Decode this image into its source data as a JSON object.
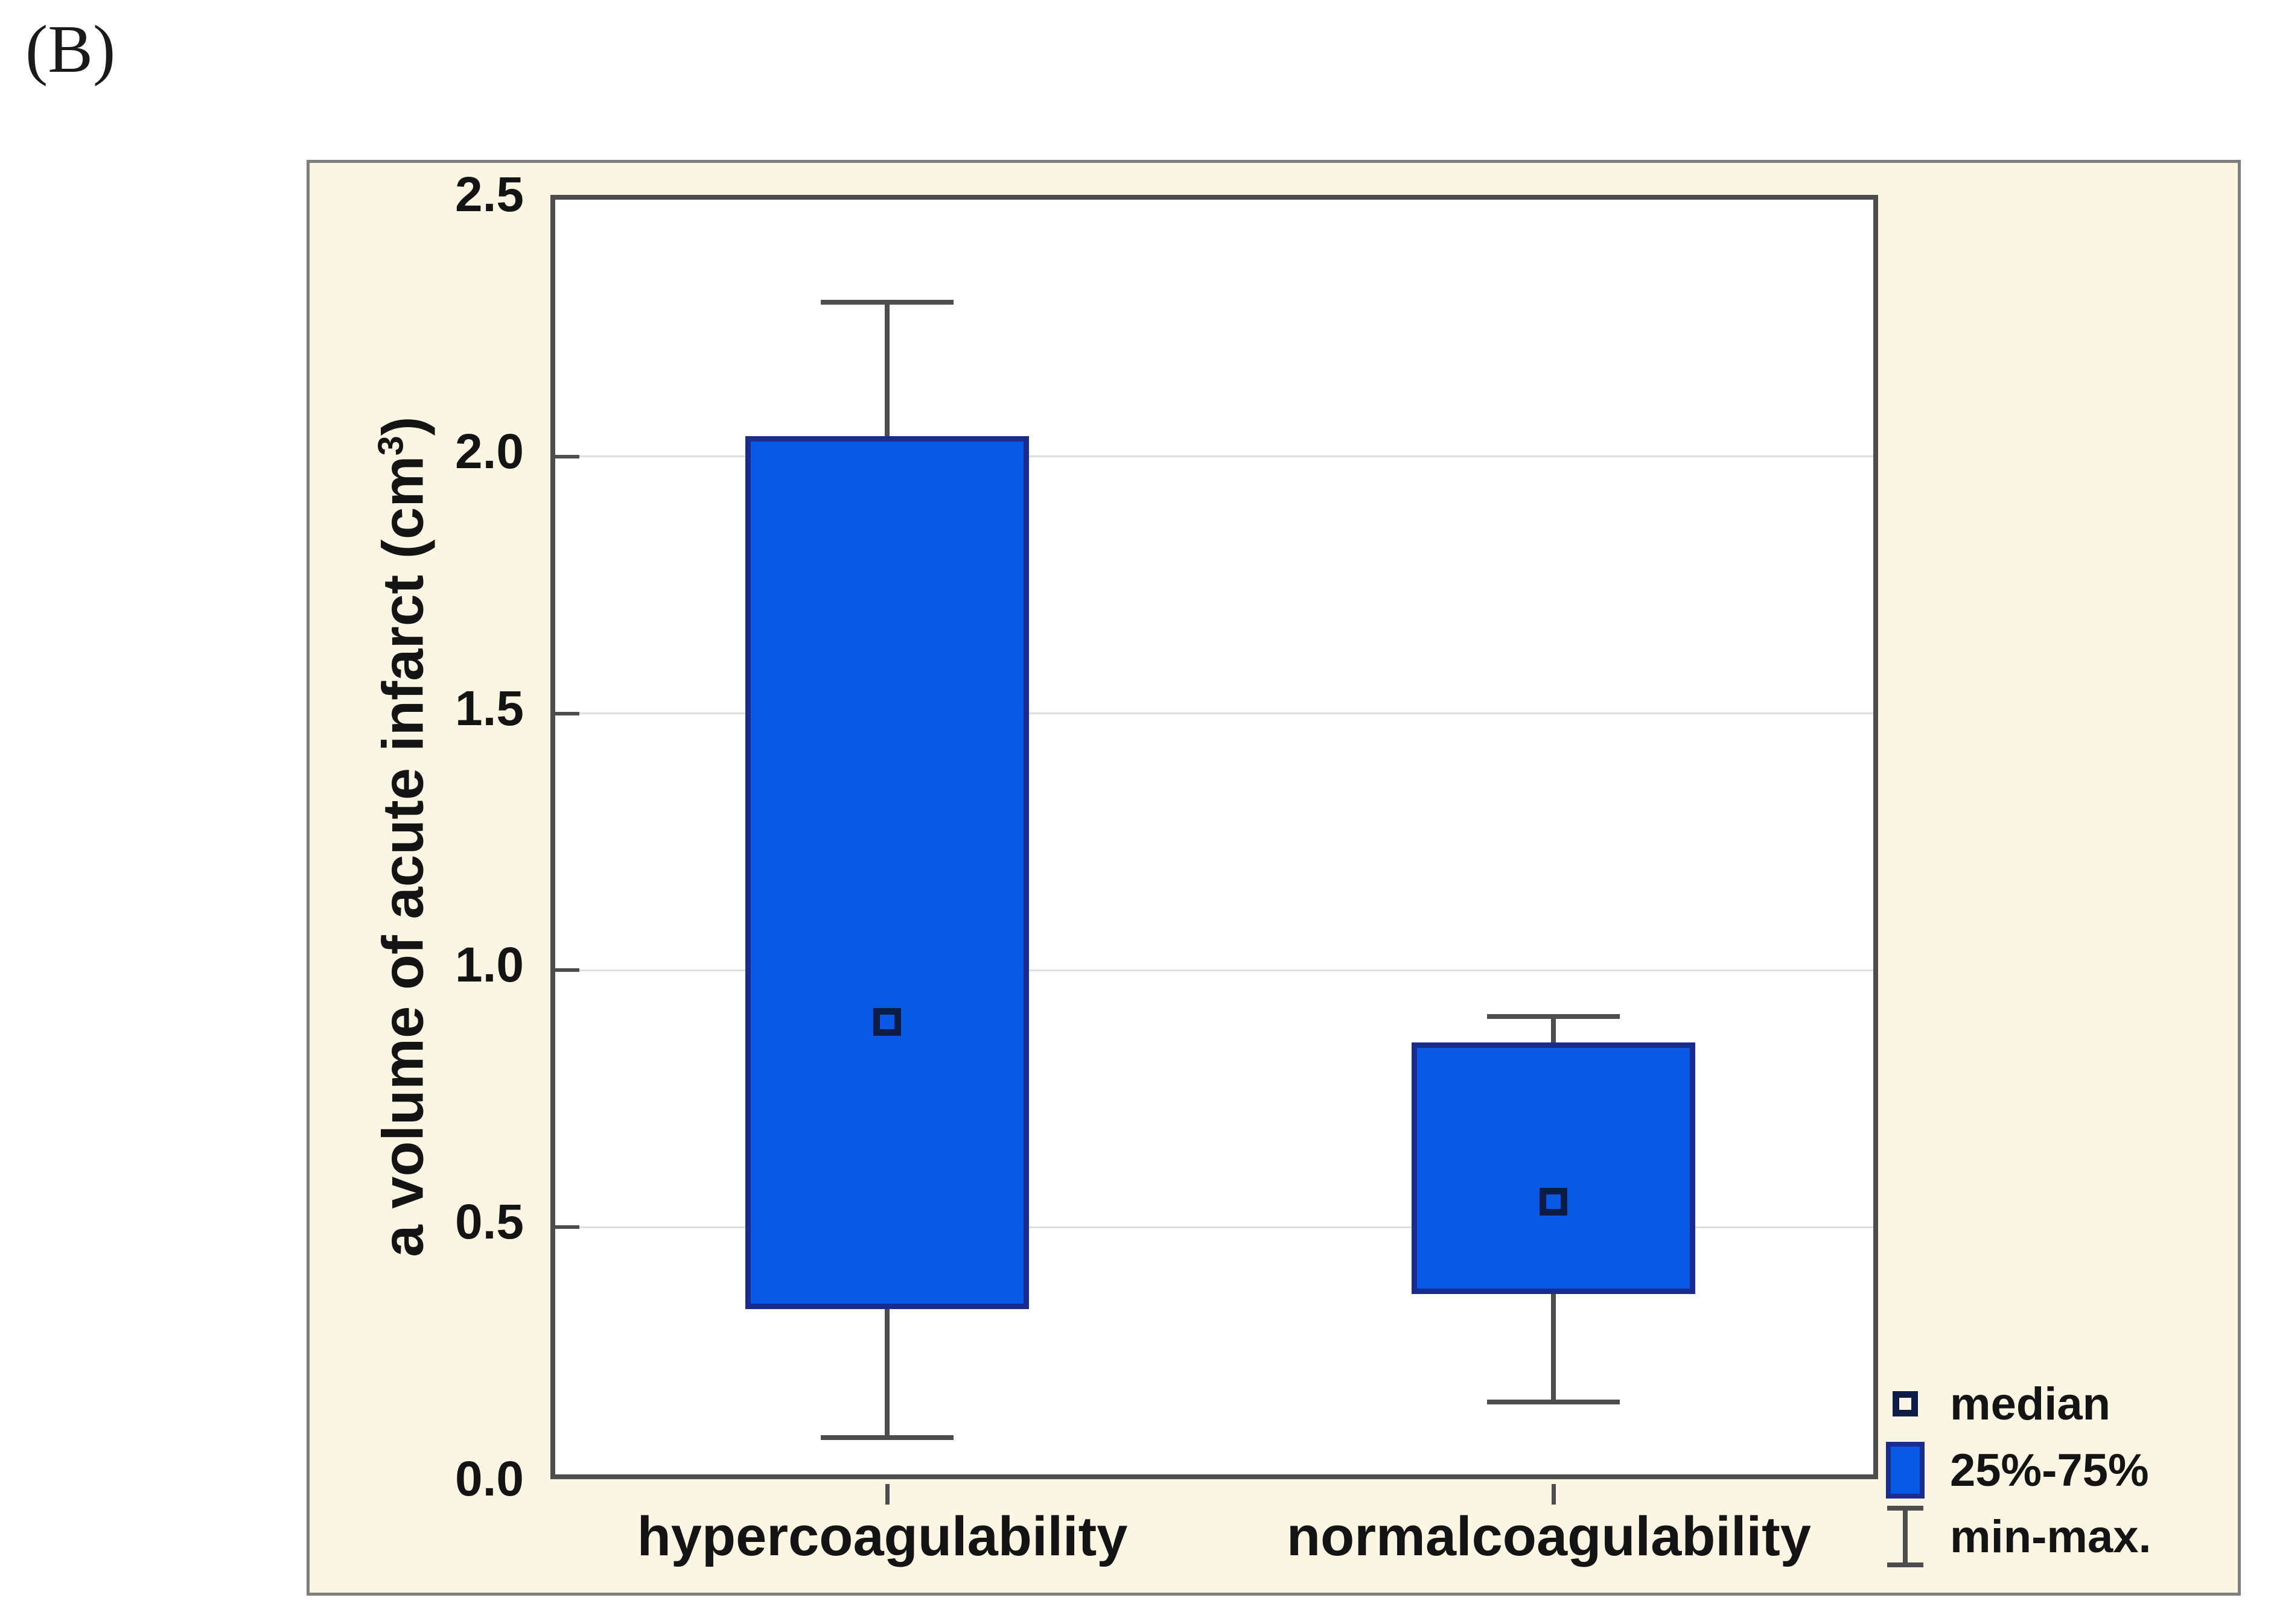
{
  "figure_label": "(B)",
  "ylabel_parts": {
    "prefix": "a volume of acute infarct (cm",
    "sup": "3",
    "suffix": ")"
  },
  "chart_data": {
    "type": "box",
    "title": "",
    "xlabel": "",
    "ylabel": "a volume of acute infarct (cm^3)",
    "ylim": [
      0,
      2.5
    ],
    "yticks": [
      0.0,
      0.5,
      1.0,
      1.5,
      2.0,
      2.5
    ],
    "ytick_labels": [
      "0.0",
      "0.5",
      "1.0",
      "1.5",
      "2.0",
      "2.5"
    ],
    "grid_values": [
      0.5,
      1.0,
      1.5,
      2.0
    ],
    "grid": "horizontal-faint",
    "categories": [
      "hypercoagulability",
      "normalcoagulability"
    ],
    "series": [
      {
        "label": "hypercoagulability",
        "x_frac": 0.25,
        "min": 0.09,
        "q1": 0.34,
        "median": 0.9,
        "q3": 2.04,
        "max": 2.3
      },
      {
        "label": "normalcoagulability",
        "x_frac": 0.752,
        "min": 0.16,
        "q1": 0.37,
        "median": 0.55,
        "q3": 0.86,
        "max": 0.91
      }
    ],
    "legend_position": "bottom-right",
    "legend": {
      "median": "median",
      "iqr": "25%-75%",
      "minmax": "min-max."
    }
  },
  "colors": {
    "panel_bg": "#fbf5e4",
    "panel_border": "#7e7e7e",
    "plot_bg": "#ffffff",
    "frame": "#4d4d4d",
    "grid": "#dedede",
    "box_fill": "#0859e3",
    "box_border": "#1a2d8f",
    "median_border": "#0d1c46",
    "whisker": "#4d4d4d",
    "text": "#141414"
  }
}
